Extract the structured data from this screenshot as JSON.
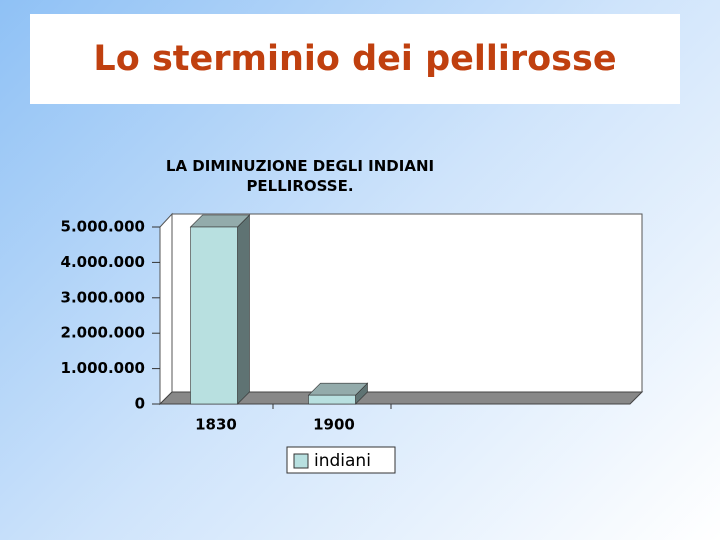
{
  "header": {
    "title": "Lo sterminio dei pellirosse"
  },
  "chart_data": {
    "type": "bar3d",
    "title": "LA DIMINUZIONE DEGLI INDIANI PELLIROSSE.",
    "categories": [
      "1830",
      "1900"
    ],
    "series": [
      {
        "name": "indiani",
        "color": "#b8e0e0",
        "values": [
          5000000,
          250000
        ]
      }
    ],
    "ylim": [
      0,
      5000000
    ],
    "yticks": [
      0,
      {
        "value": 1000000,
        "label": "1.000.000"
      },
      {
        "value": 2000000,
        "label": "2.000.000"
      },
      {
        "value": 3000000,
        "label": "3.000.000"
      },
      {
        "value": 4000000,
        "label": "4.000.000"
      },
      {
        "value": 5000000,
        "label": "5.000.000"
      }
    ],
    "legend": "bottom"
  }
}
